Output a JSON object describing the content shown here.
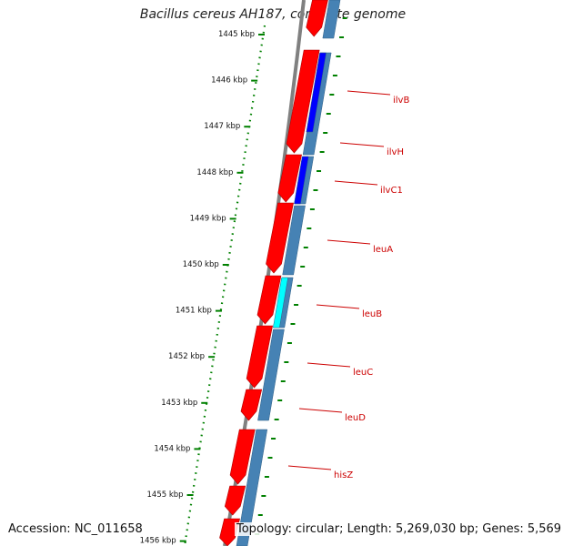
{
  "title": "Bacillus cereus AH187, complete genome",
  "footer": {
    "accession": "Accession: NC_011658",
    "summary": "Topology: circular; Length: 5,269,030 bp; Genes: 5,569"
  },
  "colors": {
    "forward_cds": "#ff0000",
    "reverse_cds": "#4682b4",
    "highlight_blue": "#0000ff",
    "highlight_cyan": "#00ffff",
    "ruler": "#008000",
    "backbone": "#808080",
    "label": "#cc0000"
  },
  "ruler": {
    "ticks": [
      "1445 kbp",
      "1446 kbp",
      "1447 kbp",
      "1448 kbp",
      "1449 kbp",
      "1450 kbp",
      "1451 kbp",
      "1452 kbp",
      "1453 kbp",
      "1454 kbp",
      "1455 kbp",
      "1456 kbp"
    ]
  },
  "genes": [
    {
      "name": "ilvB"
    },
    {
      "name": "ilvH"
    },
    {
      "name": "ilvC1"
    },
    {
      "name": "leuA"
    },
    {
      "name": "leuB"
    },
    {
      "name": "leuC"
    },
    {
      "name": "leuD"
    },
    {
      "name": "hisZ"
    }
  ]
}
